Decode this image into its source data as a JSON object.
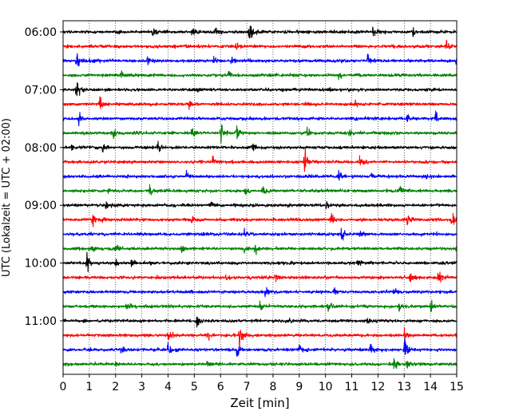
{
  "chart_data": {
    "type": "line",
    "xlabel": "Zeit  [min]",
    "ylabel": "UTC (Lokalzeit = UTC + 02:00)",
    "xlim": [
      0,
      15
    ],
    "x_ticks": [
      0,
      1,
      2,
      3,
      4,
      5,
      6,
      7,
      8,
      9,
      10,
      11,
      12,
      13,
      14,
      15
    ],
    "x_tick_labels": [
      "0",
      "1",
      "2",
      "3",
      "4",
      "5",
      "6",
      "7",
      "8",
      "9",
      "10",
      "11",
      "12",
      "13",
      "14",
      "15"
    ],
    "y_tick_labels": [
      "06:00",
      "07:00",
      "08:00",
      "09:00",
      "10:00",
      "11:00"
    ],
    "y_tick_rows": [
      0,
      4,
      8,
      12,
      16,
      20
    ],
    "grid": {
      "x": true,
      "y": false,
      "style": "dotted"
    },
    "trace_colors": [
      "#000000",
      "#ff0000",
      "#0000ff",
      "#008000"
    ],
    "traces": [
      {
        "start": "06:00",
        "events": [
          [
            3.4,
            0.3
          ],
          [
            4.9,
            0.6
          ],
          [
            5.8,
            0.5
          ],
          [
            7.1,
            1.0
          ],
          [
            11.8,
            0.4
          ],
          [
            13.3,
            0.4
          ]
        ]
      },
      {
        "start": "06:15",
        "events": [
          [
            6.6,
            0.3
          ],
          [
            14.6,
            0.5
          ]
        ]
      },
      {
        "start": "06:30",
        "events": [
          [
            0.5,
            0.9
          ],
          [
            1.0,
            0.3
          ],
          [
            3.2,
            0.3
          ],
          [
            5.7,
            0.4
          ],
          [
            6.4,
            0.4
          ],
          [
            11.6,
            0.5
          ],
          [
            15.0,
            0.5
          ]
        ]
      },
      {
        "start": "06:45",
        "events": [
          [
            2.2,
            0.3
          ],
          [
            6.3,
            0.3
          ],
          [
            10.5,
            0.2
          ]
        ]
      },
      {
        "start": "07:00",
        "events": [
          [
            0.5,
            1.0
          ],
          [
            5.1,
            0.2
          ]
        ]
      },
      {
        "start": "07:15",
        "events": [
          [
            1.4,
            0.6
          ],
          [
            4.8,
            0.2
          ],
          [
            11.1,
            0.3
          ]
        ]
      },
      {
        "start": "07:30",
        "events": [
          [
            0.6,
            0.5
          ],
          [
            13.1,
            0.4
          ],
          [
            14.2,
            0.4
          ]
        ]
      },
      {
        "start": "07:45",
        "events": [
          [
            1.9,
            0.4
          ],
          [
            4.9,
            0.6
          ],
          [
            6.0,
            0.9
          ],
          [
            6.6,
            0.7
          ],
          [
            9.3,
            0.3
          ],
          [
            10.9,
            0.3
          ]
        ]
      },
      {
        "start": "08:00",
        "events": [
          [
            0.3,
            0.3
          ],
          [
            1.5,
            0.3
          ],
          [
            3.6,
            0.5
          ],
          [
            7.2,
            0.5
          ]
        ]
      },
      {
        "start": "08:15",
        "events": [
          [
            5.7,
            0.4
          ],
          [
            9.2,
            1.0
          ],
          [
            11.3,
            0.5
          ]
        ]
      },
      {
        "start": "08:30",
        "events": [
          [
            4.7,
            0.4
          ],
          [
            10.5,
            0.5
          ],
          [
            11.7,
            0.2
          ],
          [
            13.8,
            0.2
          ]
        ]
      },
      {
        "start": "08:45",
        "events": [
          [
            1.7,
            0.2
          ],
          [
            3.3,
            0.3
          ],
          [
            6.9,
            0.4
          ],
          [
            7.6,
            0.4
          ],
          [
            12.8,
            0.4
          ]
        ]
      },
      {
        "start": "09:00",
        "events": [
          [
            1.6,
            0.4
          ],
          [
            5.6,
            0.2
          ],
          [
            10.0,
            0.2
          ]
        ]
      },
      {
        "start": "09:15",
        "events": [
          [
            1.1,
            0.5
          ],
          [
            1.5,
            0.3
          ],
          [
            4.9,
            0.3
          ],
          [
            10.2,
            0.5
          ],
          [
            13.1,
            0.6
          ],
          [
            14.8,
            0.7
          ]
        ]
      },
      {
        "start": "09:30",
        "events": [
          [
            6.9,
            0.3
          ],
          [
            10.6,
            0.6
          ],
          [
            11.3,
            0.2
          ]
        ]
      },
      {
        "start": "09:45",
        "events": [
          [
            1.1,
            0.3
          ],
          [
            2.0,
            0.4
          ],
          [
            4.5,
            0.3
          ],
          [
            6.9,
            0.4
          ],
          [
            7.3,
            0.4
          ],
          [
            15.0,
            0.4
          ]
        ]
      },
      {
        "start": "10:00",
        "events": [
          [
            0.9,
            0.7
          ],
          [
            2.0,
            0.3
          ],
          [
            2.6,
            0.4
          ],
          [
            11.2,
            0.3
          ]
        ]
      },
      {
        "start": "10:15",
        "events": [
          [
            6.2,
            0.3
          ],
          [
            8.1,
            0.4
          ],
          [
            13.2,
            0.7
          ],
          [
            14.3,
            0.5
          ]
        ]
      },
      {
        "start": "10:30",
        "events": [
          [
            7.7,
            0.5
          ],
          [
            10.3,
            0.3
          ],
          [
            12.6,
            0.5
          ]
        ]
      },
      {
        "start": "10:45",
        "events": [
          [
            2.4,
            0.4
          ],
          [
            7.5,
            0.4
          ],
          [
            10.1,
            0.4
          ],
          [
            12.8,
            0.4
          ],
          [
            14.0,
            0.4
          ]
        ]
      },
      {
        "start": "11:00",
        "events": [
          [
            5.1,
            0.6
          ],
          [
            8.6,
            0.2
          ],
          [
            11.6,
            0.2
          ]
        ]
      },
      {
        "start": "11:15",
        "events": [
          [
            4.0,
            0.5
          ],
          [
            5.5,
            0.4
          ],
          [
            6.7,
            1.0
          ],
          [
            13.0,
            0.4
          ]
        ]
      },
      {
        "start": "11:30",
        "events": [
          [
            2.2,
            0.3
          ],
          [
            4.0,
            0.6
          ],
          [
            6.6,
            0.6
          ],
          [
            9.0,
            0.3
          ],
          [
            11.7,
            0.4
          ],
          [
            13.0,
            0.9
          ]
        ]
      },
      {
        "start": "11:45",
        "events": [
          [
            2.0,
            0.2
          ],
          [
            5.5,
            0.2
          ],
          [
            12.6,
            0.6
          ],
          [
            13.1,
            0.4
          ]
        ]
      }
    ]
  }
}
